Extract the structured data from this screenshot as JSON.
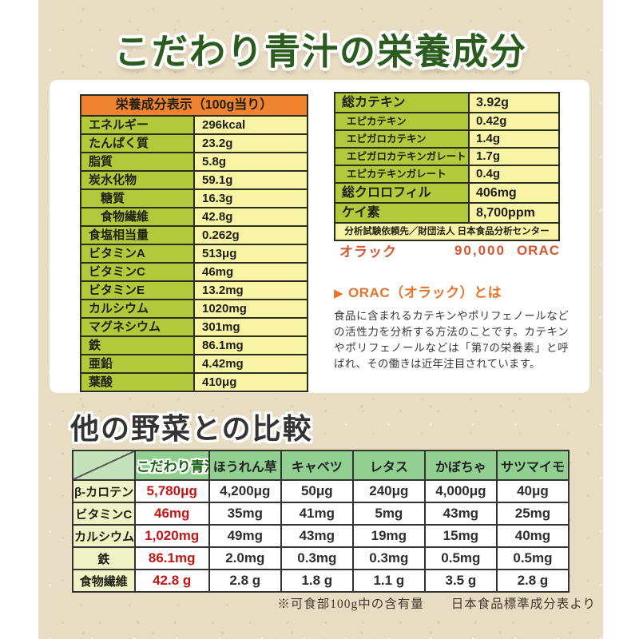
{
  "title": "こだわり青汁の栄養成分",
  "nutrition_table": {
    "header": "栄養成分表示（100g当り）",
    "rows": [
      {
        "label": "エネルギー",
        "value": "296kcal"
      },
      {
        "label": "たんぱく質",
        "value": "23.2g"
      },
      {
        "label": "脂質",
        "value": "5.8g"
      },
      {
        "label": "炭水化物",
        "value": "59.1g"
      },
      {
        "label": "糖質",
        "value": "16.3g"
      },
      {
        "label": "食物繊維",
        "value": "42.8g"
      },
      {
        "label": "食塩相当量",
        "value": "0.262g"
      },
      {
        "label": "ビタミンA",
        "value": "513μg"
      },
      {
        "label": "ビタミンC",
        "value": "46mg"
      },
      {
        "label": "ビタミンE",
        "value": "13.2mg"
      },
      {
        "label": "カルシウム",
        "value": "1020mg"
      },
      {
        "label": "マグネシウム",
        "value": "301mg"
      },
      {
        "label": "鉄",
        "value": "86.1mg"
      },
      {
        "label": "亜鉛",
        "value": "4.42mg"
      },
      {
        "label": "葉酸",
        "value": "410μg"
      }
    ]
  },
  "catechin_table": {
    "rows": [
      {
        "label": "総カテキン",
        "value": "3.92g"
      },
      {
        "label": "エピカテキン",
        "value": "0.42g"
      },
      {
        "label": "エピガロカテキン",
        "value": "1.4g"
      },
      {
        "label": "エピガロカテキンガレート",
        "value": "1.7g"
      },
      {
        "label": "エピカテキンガレート",
        "value": "0.4g"
      },
      {
        "label": "総クロロフィル",
        "value": "406mg"
      },
      {
        "label": "ケイ素",
        "value": "8,700ppm"
      }
    ],
    "footnote": "分析試験依頼先／財団法人 日本食品分析センター"
  },
  "orac": {
    "label": "オラック",
    "value": "90,000",
    "unit": "ORAC",
    "triangle_icon": "▶",
    "heading": "ORAC（オラック）とは",
    "description": "食品に含まれるカテキンやポリフェノールなどの活性力を分析する方法のことです。カテキンやポリフェノールなどは「第7の栄養素」と呼ばれ、その働きは近年注目されています。"
  },
  "comparison": {
    "heading": "他の野菜との比較",
    "columns": [
      "こだわり青汁",
      "ほうれん草",
      "キャベツ",
      "レタス",
      "かぼちゃ",
      "サツマイモ"
    ],
    "rows": [
      {
        "label": "β-カロテン",
        "values": [
          "5,780μg",
          "4,200μg",
          "50μg",
          "240μg",
          "4,000μg",
          "40μg"
        ]
      },
      {
        "label": "ビタミンC",
        "values": [
          "46mg",
          "35mg",
          "41mg",
          "5mg",
          "43mg",
          "25mg"
        ]
      },
      {
        "label": "カルシウム",
        "values": [
          "1,020mg",
          "49mg",
          "43mg",
          "19mg",
          "15mg",
          "40mg"
        ]
      },
      {
        "label": "鉄",
        "values": [
          "86.1mg",
          "2.0mg",
          "0.3mg",
          "0.3mg",
          "0.5mg",
          "0.5mg"
        ]
      },
      {
        "label": "食物繊維",
        "values": [
          "42.8 g",
          "2.8 g",
          "1.8 g",
          "1.1 g",
          "3.5 g",
          "2.8 g"
        ]
      }
    ],
    "note1": "※可食部100g中の含有量",
    "note2": "日本食品標準成分表より"
  },
  "colors": {
    "paper": "#e8ddc3",
    "title_green": "#2b5c1e",
    "header_orange": "#f0832f",
    "label_lime": "#b2c93b",
    "value_yellow": "#f8f3a5",
    "orac_orange": "#e8732c",
    "comparison_header_green": "#92d092",
    "comparison_label_yellow": "#eef2c4",
    "highlight_red": "#c41414"
  }
}
